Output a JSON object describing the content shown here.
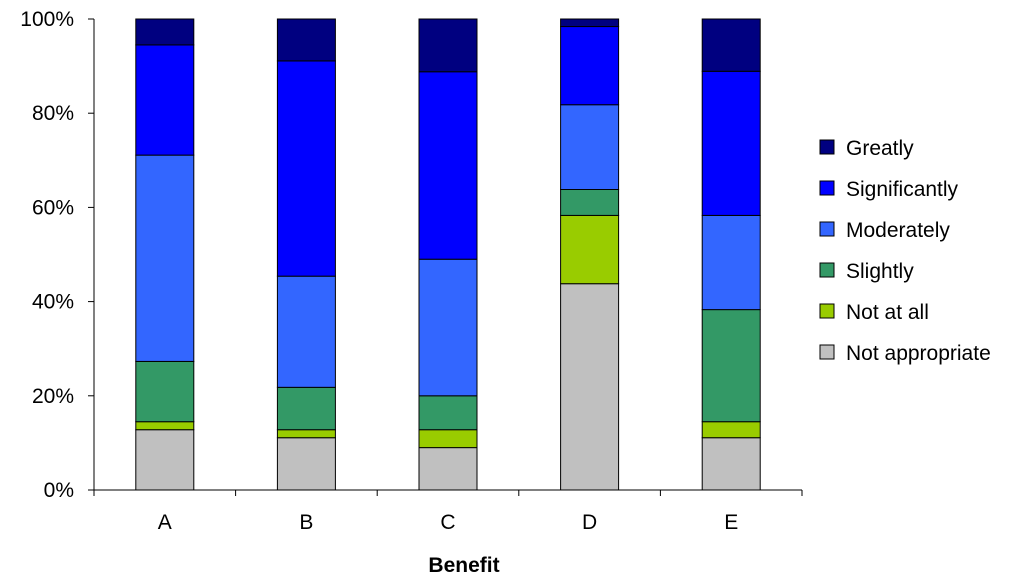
{
  "chart_data": {
    "type": "bar",
    "stacked": true,
    "normalized": true,
    "title": "",
    "xlabel": "Benefit",
    "ylabel": "",
    "categories": [
      "A",
      "B",
      "C",
      "D",
      "E"
    ],
    "ylim": [
      0,
      100
    ],
    "yticks": [
      "0%",
      "20%",
      "40%",
      "60%",
      "80%",
      "100%"
    ],
    "grid": false,
    "legend_position": "right",
    "series": [
      {
        "name": "Not appropriate",
        "color": "#C0C0C0",
        "values": [
          12.8,
          11.1,
          9.0,
          43.8,
          11.1
        ]
      },
      {
        "name": "Not at all",
        "color": "#99CC00",
        "values": [
          1.7,
          1.7,
          3.8,
          14.5,
          3.4
        ]
      },
      {
        "name": "Slightly",
        "color": "#339966",
        "values": [
          12.8,
          9.0,
          7.2,
          5.5,
          23.8
        ]
      },
      {
        "name": "Moderately",
        "color": "#3366FF",
        "values": [
          43.8,
          23.6,
          29.0,
          18.0,
          20.0
        ]
      },
      {
        "name": "Significantly",
        "color": "#0000FF",
        "values": [
          23.4,
          45.7,
          39.8,
          16.6,
          30.6
        ]
      },
      {
        "name": "Greatly",
        "color": "#000080",
        "values": [
          5.5,
          8.9,
          11.2,
          1.6,
          11.1
        ]
      }
    ]
  }
}
